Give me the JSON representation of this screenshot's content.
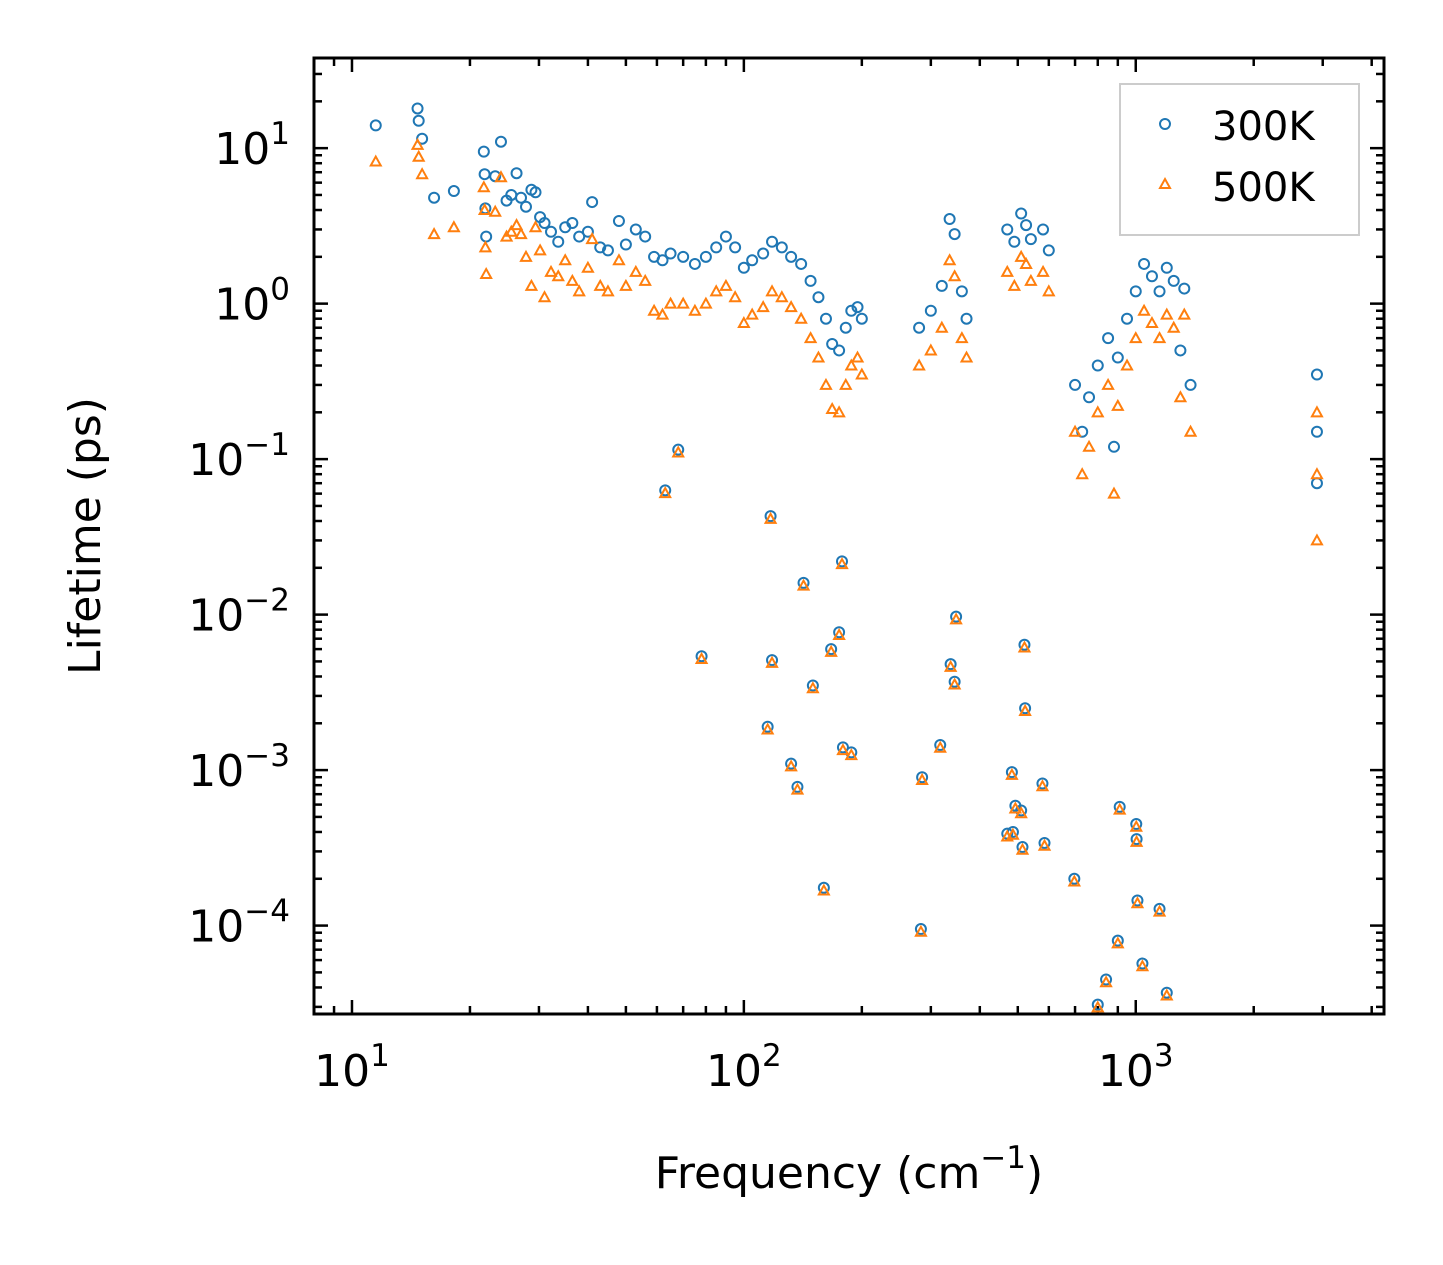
{
  "chart_data": {
    "type": "scatter",
    "title": "",
    "xlabel": "Frequency (cm",
    "xlabel_sup": "−1",
    "xlabel_suffix": ")",
    "ylabel": "Lifetime (ps)",
    "xscale": "log",
    "yscale": "log",
    "xlim": [
      8,
      4300
    ],
    "ylim": [
      2.7e-05,
      38
    ],
    "x_ticks": [
      {
        "base": "10",
        "exp": "1"
      },
      {
        "base": "10",
        "exp": "2"
      },
      {
        "base": "10",
        "exp": "3"
      }
    ],
    "y_ticks": [
      {
        "base": "10",
        "exp": "1"
      },
      {
        "base": "10",
        "exp": "0"
      },
      {
        "base": "10",
        "exp": "−1"
      },
      {
        "base": "10",
        "exp": "−2"
      },
      {
        "base": "10",
        "exp": "−3"
      },
      {
        "base": "10",
        "exp": "−4"
      }
    ],
    "legend_position": "top-right",
    "series": [
      {
        "name": "300K",
        "marker": "circle",
        "color": "#1f77b4"
      },
      {
        "name": "500K",
        "marker": "triangle",
        "color": "#ff7f0e"
      }
    ],
    "points_300K": [
      [
        11.5,
        14
      ],
      [
        14.7,
        18
      ],
      [
        14.8,
        15
      ],
      [
        15.1,
        11.5
      ],
      [
        16.2,
        4.8
      ],
      [
        18.2,
        5.3
      ],
      [
        21.7,
        9.5
      ],
      [
        21.8,
        6.8
      ],
      [
        21.9,
        4.1
      ],
      [
        22.0,
        2.7
      ],
      [
        23.2,
        6.6
      ],
      [
        24.0,
        11
      ],
      [
        24.8,
        4.6
      ],
      [
        25.5,
        5.0
      ],
      [
        26.3,
        6.9
      ],
      [
        27.0,
        4.8
      ],
      [
        27.8,
        4.2
      ],
      [
        28.7,
        5.4
      ],
      [
        29.4,
        5.2
      ],
      [
        30.2,
        3.6
      ],
      [
        31.0,
        3.3
      ],
      [
        32.2,
        2.9
      ],
      [
        33.6,
        2.5
      ],
      [
        35.0,
        3.1
      ],
      [
        36.5,
        3.3
      ],
      [
        38.0,
        2.7
      ],
      [
        40.0,
        2.9
      ],
      [
        41.0,
        4.5
      ],
      [
        43.0,
        2.3
      ],
      [
        45.0,
        2.2
      ],
      [
        48.0,
        3.4
      ],
      [
        50.0,
        2.4
      ],
      [
        53.0,
        3.0
      ],
      [
        56.0,
        2.7
      ],
      [
        59.0,
        2.0
      ],
      [
        62.0,
        1.9
      ],
      [
        65.0,
        2.1
      ],
      [
        70.0,
        2.0
      ],
      [
        75.0,
        1.8
      ],
      [
        80.0,
        2.0
      ],
      [
        85.0,
        2.3
      ],
      [
        90.0,
        2.7
      ],
      [
        95.0,
        2.3
      ],
      [
        100.0,
        1.7
      ],
      [
        105.0,
        1.9
      ],
      [
        112.0,
        2.1
      ],
      [
        118.0,
        2.5
      ],
      [
        125.0,
        2.3
      ],
      [
        132.0,
        2.0
      ],
      [
        140.0,
        1.8
      ],
      [
        148.0,
        1.4
      ],
      [
        155.0,
        1.1
      ],
      [
        162.0,
        0.8
      ],
      [
        168.0,
        0.55
      ],
      [
        175.0,
        0.5
      ],
      [
        182.0,
        0.7
      ],
      [
        188.0,
        0.9
      ],
      [
        195.0,
        0.95
      ],
      [
        200.0,
        0.8
      ],
      [
        280,
        0.7
      ],
      [
        300,
        0.9
      ],
      [
        320,
        1.3
      ],
      [
        335,
        3.5
      ],
      [
        345,
        2.8
      ],
      [
        360,
        1.2
      ],
      [
        370,
        0.8
      ],
      [
        470,
        3.0
      ],
      [
        490,
        2.5
      ],
      [
        510,
        3.8
      ],
      [
        525,
        3.2
      ],
      [
        540,
        2.6
      ],
      [
        580,
        3.0
      ],
      [
        600,
        2.2
      ],
      [
        700,
        0.3
      ],
      [
        730,
        0.15
      ],
      [
        760,
        0.25
      ],
      [
        800,
        0.4
      ],
      [
        850,
        0.6
      ],
      [
        880,
        0.12
      ],
      [
        900,
        0.45
      ],
      [
        950,
        0.8
      ],
      [
        1000,
        1.2
      ],
      [
        1050,
        1.8
      ],
      [
        1100,
        1.5
      ],
      [
        1150,
        1.2
      ],
      [
        1200,
        1.7
      ],
      [
        1250,
        1.4
      ],
      [
        1300,
        0.5
      ],
      [
        1330,
        1.25
      ],
      [
        1380,
        0.3
      ],
      [
        2900,
        0.35
      ],
      [
        2900,
        0.15
      ],
      [
        2900,
        0.07
      ]
    ],
    "points_500K": [
      [
        11.5,
        8.2
      ],
      [
        14.7,
        10.5
      ],
      [
        14.8,
        8.8
      ],
      [
        15.1,
        6.8
      ],
      [
        16.2,
        2.8
      ],
      [
        18.2,
        3.1
      ],
      [
        21.7,
        5.6
      ],
      [
        21.8,
        4.0
      ],
      [
        21.9,
        2.3
      ],
      [
        22.0,
        1.55
      ],
      [
        23.2,
        3.9
      ],
      [
        24.0,
        6.5
      ],
      [
        24.8,
        2.7
      ],
      [
        25.5,
        2.9
      ],
      [
        26.3,
        3.2
      ],
      [
        27.0,
        2.8
      ],
      [
        27.8,
        2.0
      ],
      [
        28.7,
        1.3
      ],
      [
        29.4,
        3.1
      ],
      [
        30.2,
        2.2
      ],
      [
        31.0,
        1.1
      ],
      [
        32.2,
        1.6
      ],
      [
        33.6,
        1.5
      ],
      [
        35.0,
        1.9
      ],
      [
        36.5,
        1.4
      ],
      [
        38.0,
        1.2
      ],
      [
        40.0,
        1.7
      ],
      [
        41.0,
        2.6
      ],
      [
        43.0,
        1.3
      ],
      [
        45.0,
        1.2
      ],
      [
        48.0,
        1.9
      ],
      [
        50.0,
        1.3
      ],
      [
        53.0,
        1.6
      ],
      [
        56.0,
        1.4
      ],
      [
        59.0,
        0.9
      ],
      [
        62.0,
        0.85
      ],
      [
        65.0,
        1.0
      ],
      [
        70.0,
        1.0
      ],
      [
        75.0,
        0.9
      ],
      [
        80.0,
        1.0
      ],
      [
        85.0,
        1.2
      ],
      [
        90.0,
        1.3
      ],
      [
        95.0,
        1.1
      ],
      [
        100.0,
        0.75
      ],
      [
        105.0,
        0.85
      ],
      [
        112.0,
        0.95
      ],
      [
        118.0,
        1.2
      ],
      [
        125.0,
        1.1
      ],
      [
        132.0,
        0.95
      ],
      [
        140.0,
        0.8
      ],
      [
        148.0,
        0.6
      ],
      [
        155.0,
        0.45
      ],
      [
        162.0,
        0.3
      ],
      [
        168.0,
        0.21
      ],
      [
        175.0,
        0.2
      ],
      [
        182.0,
        0.3
      ],
      [
        188.0,
        0.4
      ],
      [
        195.0,
        0.45
      ],
      [
        200.0,
        0.35
      ],
      [
        280,
        0.4
      ],
      [
        300,
        0.5
      ],
      [
        320,
        0.7
      ],
      [
        335,
        1.9
      ],
      [
        345,
        1.5
      ],
      [
        360,
        0.6
      ],
      [
        370,
        0.45
      ],
      [
        470,
        1.6
      ],
      [
        490,
        1.3
      ],
      [
        510,
        2.0
      ],
      [
        525,
        1.8
      ],
      [
        540,
        1.4
      ],
      [
        580,
        1.6
      ],
      [
        600,
        1.2
      ],
      [
        700,
        0.15
      ],
      [
        730,
        0.08
      ],
      [
        760,
        0.12
      ],
      [
        800,
        0.2
      ],
      [
        850,
        0.3
      ],
      [
        880,
        0.06
      ],
      [
        900,
        0.22
      ],
      [
        950,
        0.4
      ],
      [
        1000,
        0.6
      ],
      [
        1050,
        0.9
      ],
      [
        1100,
        0.75
      ],
      [
        1150,
        0.6
      ],
      [
        1200,
        0.85
      ],
      [
        1250,
        0.7
      ],
      [
        1300,
        0.25
      ],
      [
        1330,
        0.85
      ],
      [
        1380,
        0.15
      ],
      [
        2900,
        0.2
      ],
      [
        2900,
        0.08
      ],
      [
        2900,
        0.03
      ]
    ],
    "points_shared": [
      [
        63,
        0.063
      ],
      [
        68,
        0.115
      ],
      [
        78,
        0.0054
      ],
      [
        115,
        0.0019
      ],
      [
        117,
        0.043
      ],
      [
        118,
        0.0051
      ],
      [
        132,
        0.0011
      ],
      [
        137,
        0.00078
      ],
      [
        142,
        0.016
      ],
      [
        150,
        0.0035
      ],
      [
        160,
        0.000175
      ],
      [
        167,
        0.006
      ],
      [
        175,
        0.0077
      ],
      [
        178,
        0.022
      ],
      [
        179,
        0.0014
      ],
      [
        188,
        0.0013
      ],
      [
        283,
        9.5e-05
      ],
      [
        285,
        0.0009
      ],
      [
        317,
        0.00145
      ],
      [
        337,
        0.0048
      ],
      [
        345,
        0.0037
      ],
      [
        348,
        0.0097
      ],
      [
        470,
        0.00039
      ],
      [
        483,
        0.00097
      ],
      [
        486,
        0.0004
      ],
      [
        493,
        0.00059
      ],
      [
        510,
        0.00055
      ],
      [
        514,
        0.00032
      ],
      [
        520,
        0.0064
      ],
      [
        522,
        0.0025
      ],
      [
        578,
        0.00082
      ],
      [
        585,
        0.00034
      ],
      [
        697,
        0.0002
      ],
      [
        800,
        3.1e-05
      ],
      [
        840,
        4.5e-05
      ],
      [
        900,
        8e-05
      ],
      [
        910,
        0.00058
      ],
      [
        1003,
        0.00045
      ],
      [
        1005,
        0.00036
      ],
      [
        1010,
        0.000145
      ],
      [
        1040,
        5.7e-05
      ],
      [
        1150,
        0.000128
      ],
      [
        1200,
        3.7e-05
      ]
    ]
  }
}
